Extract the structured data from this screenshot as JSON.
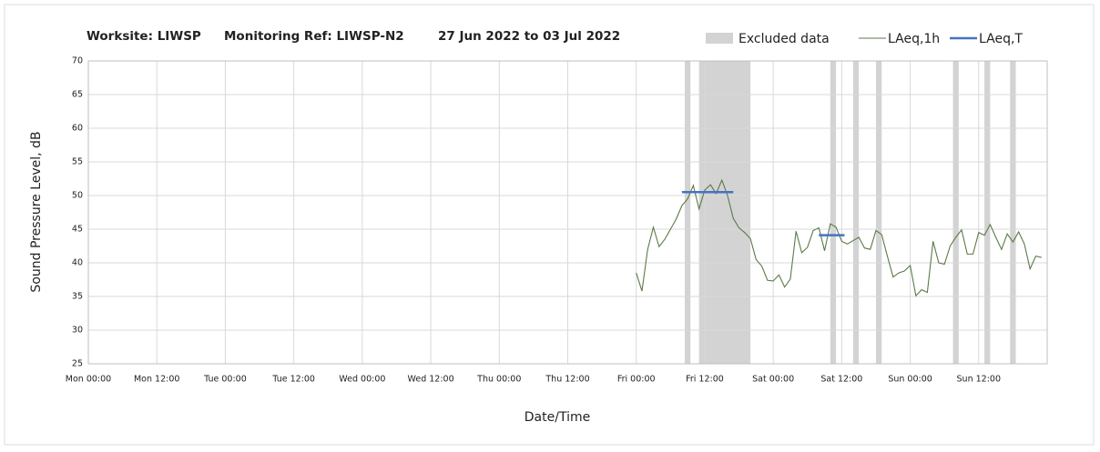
{
  "chart_data": {
    "type": "line",
    "title": [
      "Worksite: LIWSP",
      "Monitoring Ref: LIWSP-N2",
      "27 Jun 2022 to 03 Jul 2022"
    ],
    "xlabel": "Date/Time",
    "ylabel": "Sound Pressure Level, dB",
    "xlim": [
      0,
      168
    ],
    "ylim": [
      25,
      70
    ],
    "xticks": [
      {
        "value": 0,
        "label": "Mon 00:00"
      },
      {
        "value": 12,
        "label": "Mon 12:00"
      },
      {
        "value": 24,
        "label": "Tue 00:00"
      },
      {
        "value": 36,
        "label": "Tue 12:00"
      },
      {
        "value": 48,
        "label": "Wed 00:00"
      },
      {
        "value": 60,
        "label": "Wed 12:00"
      },
      {
        "value": 72,
        "label": "Thu 00:00"
      },
      {
        "value": 84,
        "label": "Thu 12:00"
      },
      {
        "value": 96,
        "label": "Fri 00:00"
      },
      {
        "value": 108,
        "label": "Fri 12:00"
      },
      {
        "value": 120,
        "label": "Sat 00:00"
      },
      {
        "value": 132,
        "label": "Sat 12:00"
      },
      {
        "value": 144,
        "label": "Sun 00:00"
      },
      {
        "value": 156,
        "label": "Sun 12:00"
      }
    ],
    "yticks": [
      25,
      30,
      35,
      40,
      45,
      50,
      55,
      60,
      65,
      70
    ],
    "grid": true,
    "excluded": {
      "name": "Excluded data",
      "color": "#d3d3d3",
      "ranges": [
        [
          104.5,
          105.5
        ],
        [
          107,
          116
        ],
        [
          130,
          131
        ],
        [
          134,
          135
        ],
        [
          138,
          139
        ],
        [
          151.5,
          152.5
        ],
        [
          157,
          158
        ],
        [
          161.5,
          162.5
        ]
      ]
    },
    "series": [
      {
        "name": "LAeq,1h",
        "color": "#5b7a48",
        "x": [
          96,
          97,
          98,
          99,
          100,
          101,
          102,
          103,
          104,
          105,
          106,
          107,
          108,
          109,
          110,
          111,
          112,
          113,
          114,
          115,
          116,
          117,
          118,
          119,
          120,
          121,
          122,
          123,
          124,
          125,
          126,
          127,
          128,
          129,
          130,
          131,
          132,
          133,
          134,
          135,
          136,
          137,
          138,
          139,
          140,
          141,
          142,
          143,
          144,
          145,
          146,
          147,
          148,
          149,
          150,
          151,
          152,
          153,
          154,
          155,
          156,
          157,
          158,
          159,
          160,
          161,
          162,
          163,
          164,
          165,
          166,
          167
        ],
        "values": [
          38.5,
          35.8,
          42,
          45.3,
          42.4,
          43.5,
          45,
          46.5,
          48.5,
          49.5,
          51.5,
          48,
          50.8,
          51.6,
          50.3,
          52.3,
          50,
          46.6,
          45.2,
          44.5,
          43.6,
          40.5,
          39.5,
          37.4,
          37.3,
          38.2,
          36.4,
          37.6,
          44.7,
          41.5,
          42.3,
          44.8,
          45.2,
          41.8,
          45.8,
          45.3,
          43.2,
          42.8,
          43.3,
          43.8,
          42.2,
          42,
          44.8,
          44.2,
          41,
          37.9,
          38.5,
          38.8,
          39.6,
          35.1,
          36,
          35.6,
          43.2,
          40,
          39.8,
          42.5,
          43.8,
          44.9,
          41.3,
          41.3,
          44.5,
          44.1,
          45.7,
          43.8,
          42,
          44.3,
          43.1,
          44.6,
          42.8,
          39.1,
          41,
          40.8
        ]
      },
      {
        "name": "LAeq,T",
        "color": "#4472c4",
        "x": [
          104,
          113,
          120,
          128,
          132.5
        ],
        "values": [
          50.5,
          50.5,
          null,
          44.1,
          44.1
        ]
      }
    ]
  }
}
